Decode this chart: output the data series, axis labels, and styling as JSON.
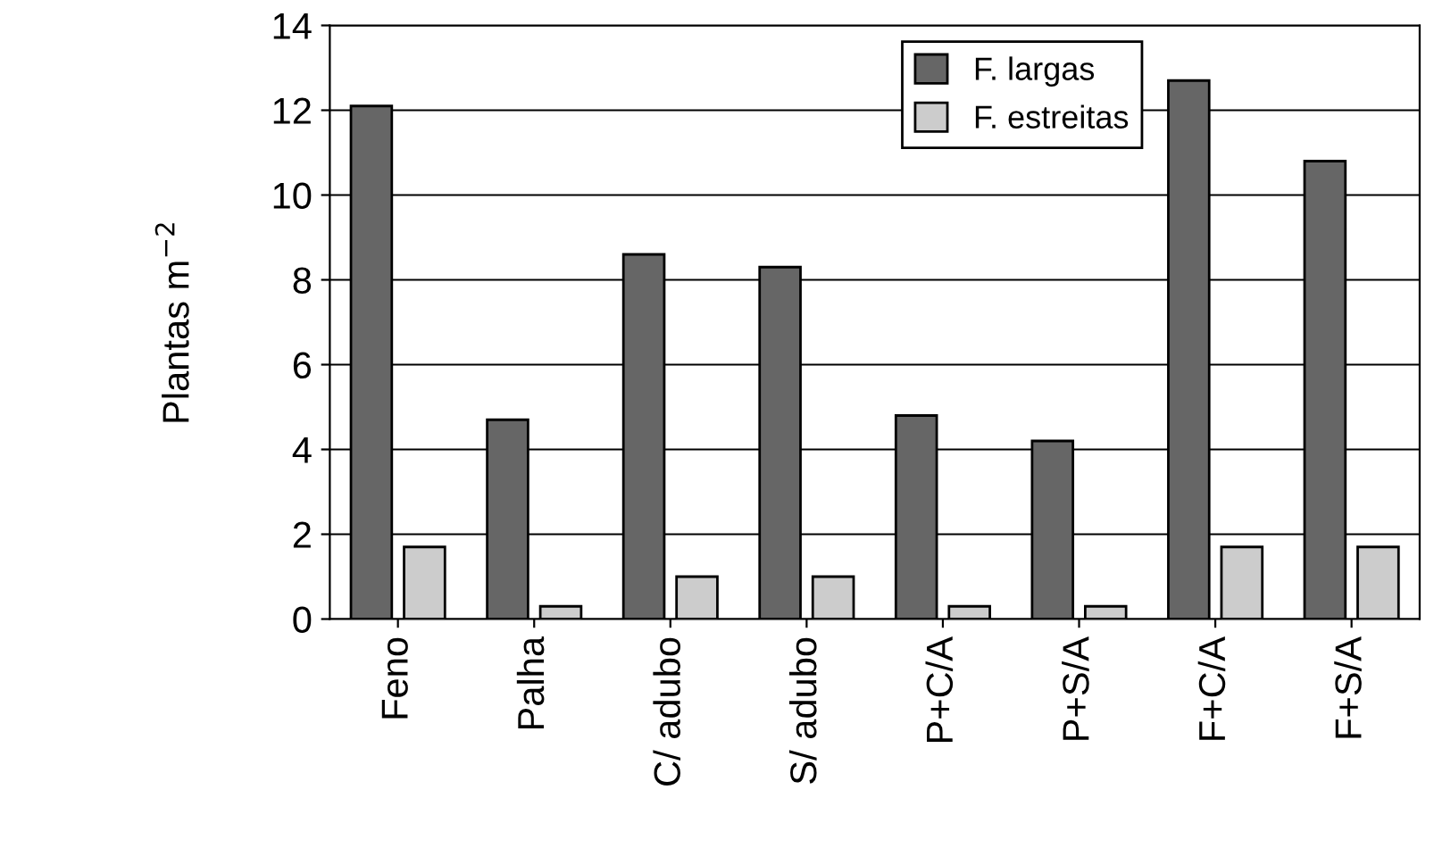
{
  "chart_data": {
    "type": "bar",
    "ylabel": "Plantas m$^{−2}$",
    "categories": [
      "Feno",
      "Palha",
      "C/ adubo",
      "S/ adubo",
      "P+C/A",
      "P+S/A",
      "F+C/A",
      "F+S/A"
    ],
    "series": [
      {
        "name": "F. largas",
        "color": "#666666",
        "values": [
          12.1,
          4.7,
          8.6,
          8.3,
          4.8,
          4.2,
          12.7,
          10.8
        ]
      },
      {
        "name": "F. estreitas",
        "color": "#cccccc",
        "values": [
          1.7,
          0.3,
          1.0,
          1.0,
          0.3,
          0.3,
          1.7,
          1.7
        ]
      }
    ],
    "ylim": [
      0,
      14
    ],
    "yticks": [
      0,
      2,
      4,
      6,
      8,
      10,
      12,
      14
    ],
    "grid": "y",
    "legend": "top right"
  }
}
